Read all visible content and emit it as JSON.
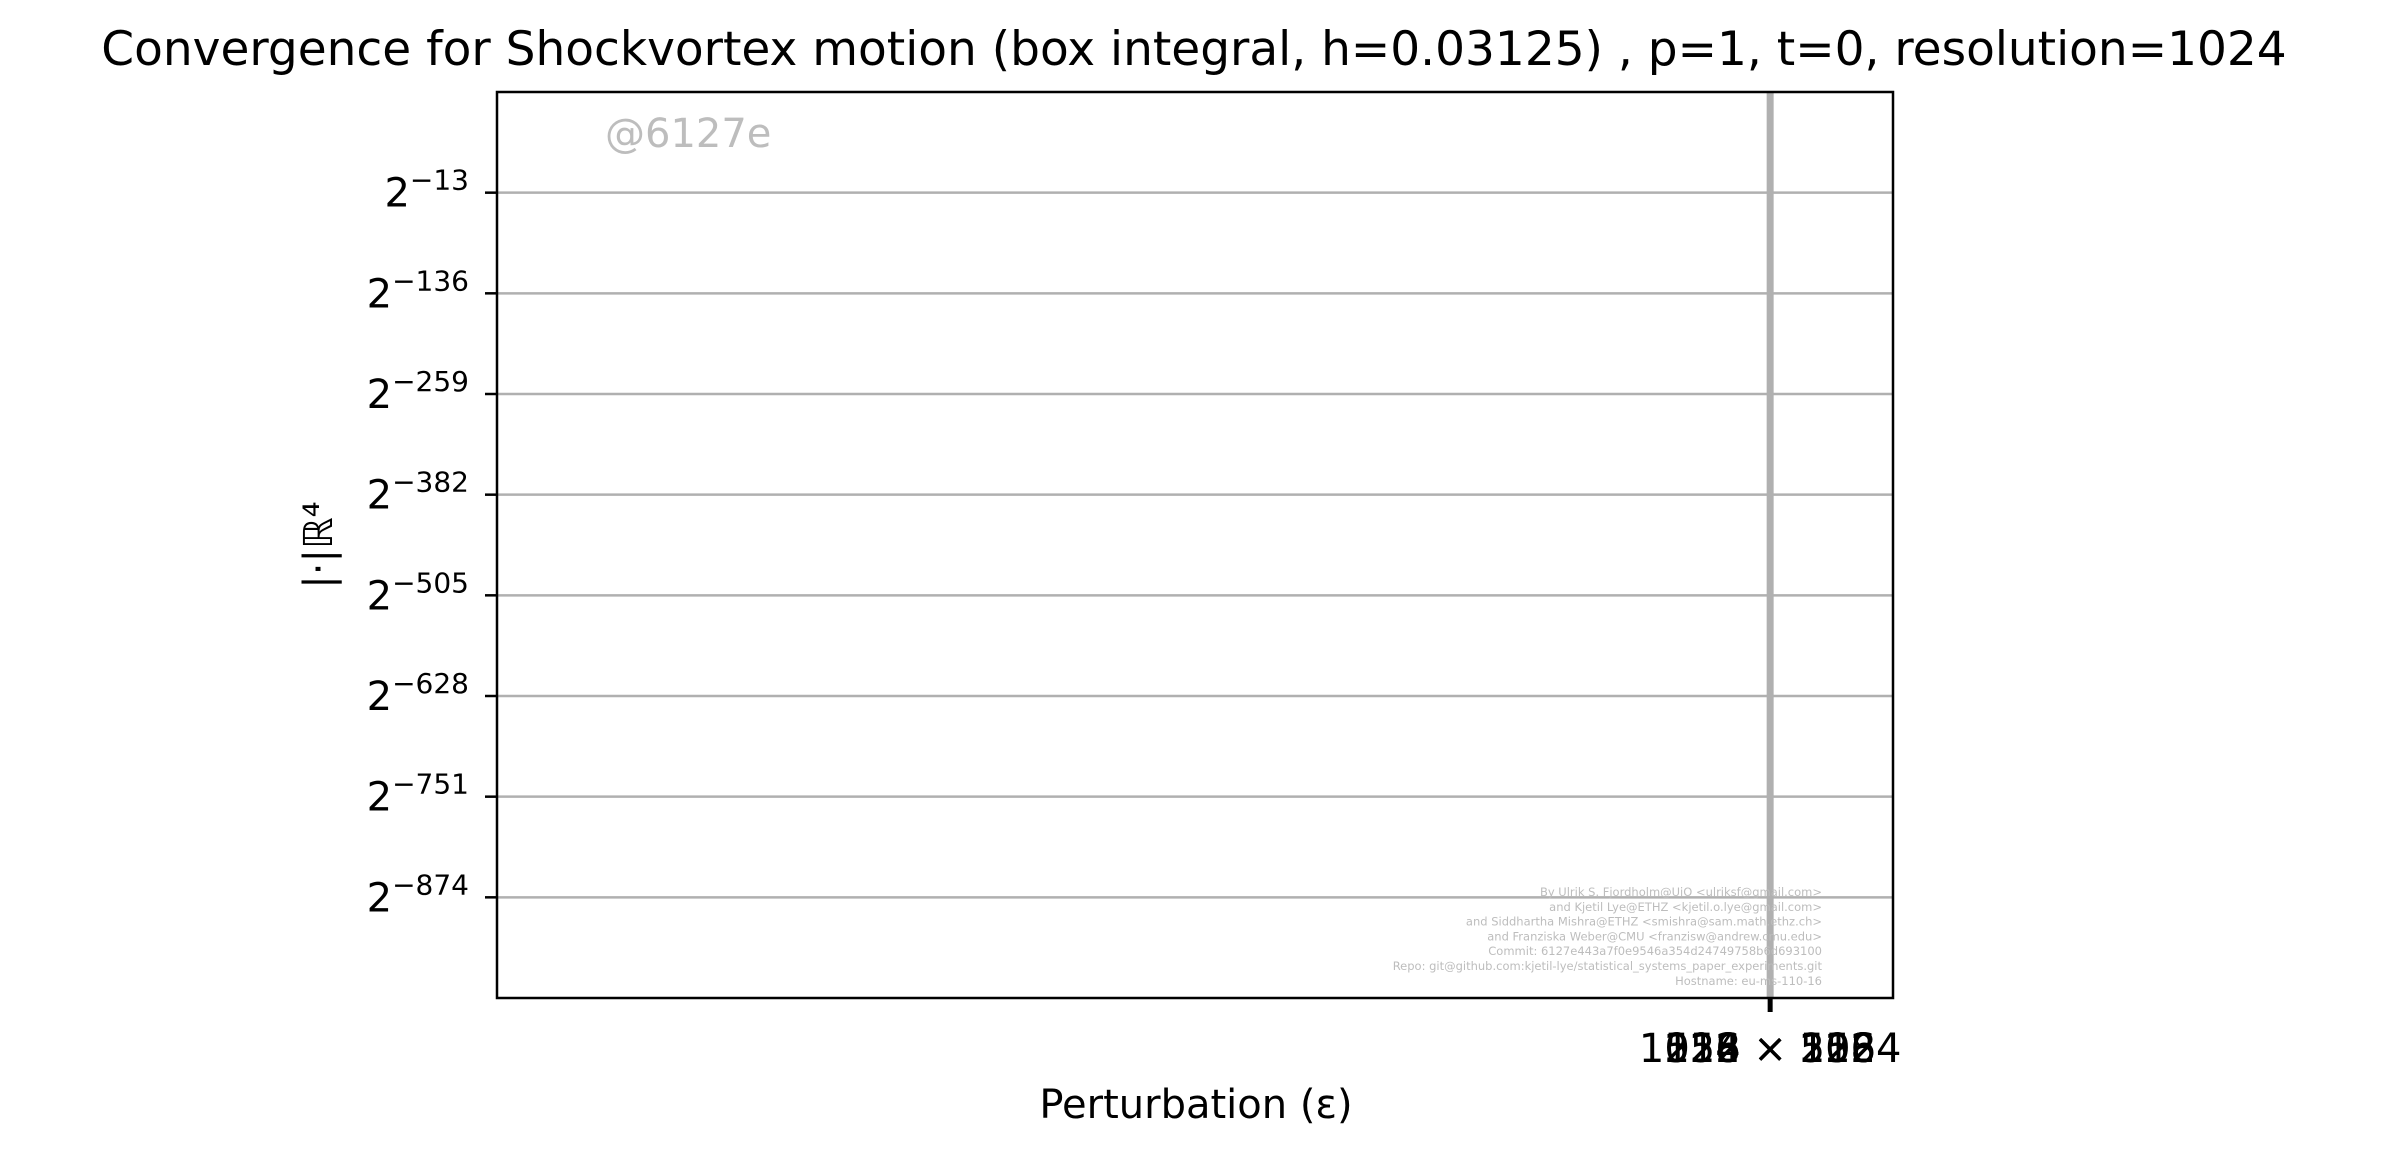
{
  "chart_data": {
    "type": "line",
    "title": "Convergence for Shockvortex motion (box integral, h=0.03125) , p=1, t=0, resolution=1024",
    "xlabel": "Perturbation (ε)",
    "ylabel": "|·|ℝ⁴",
    "yscale": "log2",
    "grid": "horizontal",
    "legend": "none",
    "y_ticks": [
      {
        "base": "2",
        "exp": "−13",
        "value_exp": -13
      },
      {
        "base": "2",
        "exp": "−136",
        "value_exp": -136
      },
      {
        "base": "2",
        "exp": "−259",
        "value_exp": -259
      },
      {
        "base": "2",
        "exp": "−382",
        "value_exp": -382
      },
      {
        "base": "2",
        "exp": "−505",
        "value_exp": -505
      },
      {
        "base": "2",
        "exp": "−628",
        "value_exp": -628
      },
      {
        "base": "2",
        "exp": "−751",
        "value_exp": -751
      },
      {
        "base": "2",
        "exp": "−874",
        "value_exp": -874
      }
    ],
    "x_ticks": [
      {
        "label": "1024 × 1024",
        "position": 0.912
      }
    ],
    "overlapping_xtick_labels": [
      "128 × 128",
      "256 × 256",
      "512 × 512",
      "1024 × 1024"
    ],
    "ylim_exp": [
      -997,
      110
    ],
    "series": [
      {
        "x": [
          1024,
          1024
        ],
        "y_exp": [
          -997,
          110
        ],
        "color": "#b0b0b0"
      }
    ],
    "colors": {
      "grid": "#b0b0b0",
      "series": "#b0b0b0",
      "axes": "#000000",
      "watermark": "#bdbdbd"
    }
  },
  "watermark": {
    "commit_tag": "@6127e",
    "credits": [
      "By Ulrik S. Fjordholm@UiO <ulriksf@gmail.com>",
      "and Kjetil Lye@ETHZ <kjetil.o.lye@gmail.com>",
      "and Siddhartha Mishra@ETHZ <smishra@sam.math.ethz.ch>",
      "and Franziska Weber@CMU <franzisw@andrew.cmu.edu>",
      "Commit: 6127e443a7f0e9546a354d24749758b6d693100",
      "Repo: git@github.com:kjetil-lye/statistical_systems_paper_experiments.git",
      "Hostname: eu-ms-110-16"
    ]
  }
}
